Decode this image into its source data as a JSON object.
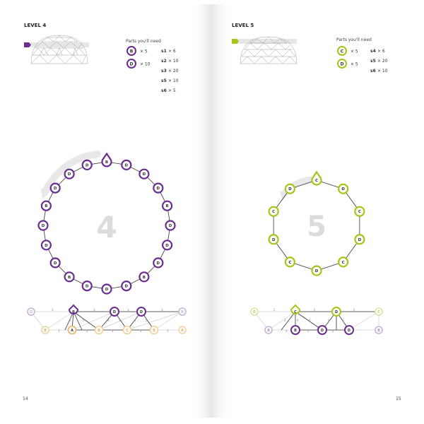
{
  "colors": {
    "purple": "#6a2c91",
    "green": "#a6c519",
    "light_purple": "#c6b3d6",
    "light_green": "#d9e6a3",
    "light_orange": "#f0cf95",
    "gray_text": "#4a4a4a",
    "big_number": "#dcdcdc"
  },
  "left_page": {
    "level": "LEVEL 4",
    "parts_title": "Parts you'll need",
    "hubs": [
      {
        "letter": "B",
        "qty": "× 5"
      },
      {
        "letter": "D",
        "qty": "× 10"
      }
    ],
    "struts": [
      {
        "id": "s1",
        "qty": "× 6"
      },
      {
        "id": "s2",
        "qty": "× 10"
      },
      {
        "id": "s3",
        "qty": "× 20"
      },
      {
        "id": "s5",
        "qty": "× 10"
      },
      {
        "id": "s6",
        "qty": "× 5"
      }
    ],
    "ring_number": "4",
    "ring_nodes": [
      "B",
      "D",
      "D",
      "D",
      "B",
      "D",
      "D",
      "D",
      "B",
      "D",
      "D",
      "D",
      "B",
      "D",
      "D",
      "D",
      "B",
      "D",
      "D",
      "D"
    ],
    "page_number": "14"
  },
  "right_page": {
    "level": "LEVEL 5",
    "parts_title": "Parts you'll need",
    "hubs": [
      {
        "letter": "C",
        "qty": "× 5"
      },
      {
        "letter": "D",
        "qty": "× 5"
      }
    ],
    "struts": [
      {
        "id": "s4",
        "qty": "× 6"
      },
      {
        "id": "s5",
        "qty": "× 20"
      },
      {
        "id": "s6",
        "qty": "× 10"
      }
    ],
    "ring_number": "5",
    "ring_nodes": [
      "C",
      "D",
      "C",
      "D",
      "C",
      "D",
      "C",
      "D",
      "C",
      "D"
    ],
    "page_number": "15"
  }
}
